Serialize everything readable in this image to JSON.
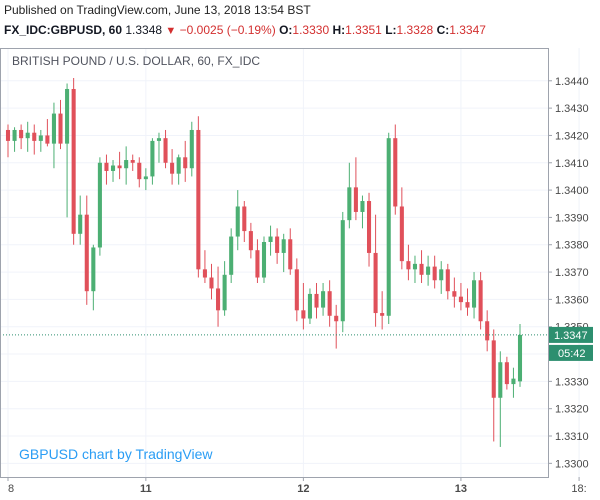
{
  "header": {
    "published": "Published on TradingView.com, June 13, 2018 13:54 BST",
    "symbol": "FX_IDC:GBPUSD, 60",
    "last": "1.3348",
    "change_arrow": "▼",
    "change": "−0.0025 (−0.19%)",
    "open_label": "O:",
    "open_value": "1.3330",
    "high_label": "H:",
    "high_value": "1.3351",
    "low_label": "L:",
    "low_value": "1.3328",
    "close_label": "C:",
    "close_value": "1.3347"
  },
  "colors": {
    "up": "#4caf73",
    "down": "#e0505a",
    "price_line": "#2d8f6f",
    "grid": "#f0f3fa",
    "border": "#9ea3ad"
  },
  "chart_data": {
    "type": "candlestick",
    "title": "BRITISH POUND / U.S. DOLLAR, 60, FX_IDC",
    "watermark": "GBPUSD chart by TradingView",
    "xlabel": "",
    "ylabel": "",
    "ylim": [
      1.3295,
      1.3452
    ],
    "y_ticks": [
      "1.3300",
      "1.3310",
      "1.3320",
      "1.3330",
      "1.3340",
      "1.3350",
      "1.3360",
      "1.3370",
      "1.3380",
      "1.3390",
      "1.3400",
      "1.3410",
      "1.3420",
      "1.3430",
      "1.3440"
    ],
    "x_ticks": [
      {
        "label": "8",
        "index": 0
      },
      {
        "label": "11",
        "index": 21
      },
      {
        "label": "12",
        "index": 45
      },
      {
        "label": "13",
        "index": 69
      },
      {
        "label": "18:",
        "index": 87
      }
    ],
    "current_price": "1.3347",
    "current_time": "05:42",
    "candles": [
      {
        "o": 1.3422,
        "h": 1.3424,
        "l": 1.3412,
        "c": 1.3418
      },
      {
        "o": 1.3418,
        "h": 1.3423,
        "l": 1.3414,
        "c": 1.3422
      },
      {
        "o": 1.3422,
        "h": 1.3424,
        "l": 1.3415,
        "c": 1.3419
      },
      {
        "o": 1.3419,
        "h": 1.3425,
        "l": 1.3414,
        "c": 1.3421
      },
      {
        "o": 1.3421,
        "h": 1.3424,
        "l": 1.3413,
        "c": 1.3418
      },
      {
        "o": 1.3418,
        "h": 1.3422,
        "l": 1.3414,
        "c": 1.342
      },
      {
        "o": 1.342,
        "h": 1.3426,
        "l": 1.3416,
        "c": 1.3417
      },
      {
        "o": 1.3417,
        "h": 1.3432,
        "l": 1.3408,
        "c": 1.3428
      },
      {
        "o": 1.3428,
        "h": 1.3433,
        "l": 1.3415,
        "c": 1.3417
      },
      {
        "o": 1.3417,
        "h": 1.3439,
        "l": 1.339,
        "c": 1.3437
      },
      {
        "o": 1.3437,
        "h": 1.3441,
        "l": 1.338,
        "c": 1.3384
      },
      {
        "o": 1.3384,
        "h": 1.3398,
        "l": 1.338,
        "c": 1.3391
      },
      {
        "o": 1.3391,
        "h": 1.3398,
        "l": 1.3358,
        "c": 1.3363
      },
      {
        "o": 1.3363,
        "h": 1.338,
        "l": 1.3356,
        "c": 1.3379
      },
      {
        "o": 1.3379,
        "h": 1.3412,
        "l": 1.3376,
        "c": 1.341
      },
      {
        "o": 1.341,
        "h": 1.3413,
        "l": 1.3402,
        "c": 1.3407
      },
      {
        "o": 1.3407,
        "h": 1.3411,
        "l": 1.3403,
        "c": 1.3409
      },
      {
        "o": 1.3409,
        "h": 1.3414,
        "l": 1.3404,
        "c": 1.3408
      },
      {
        "o": 1.3408,
        "h": 1.3416,
        "l": 1.3402,
        "c": 1.3411
      },
      {
        "o": 1.3411,
        "h": 1.3413,
        "l": 1.3407,
        "c": 1.341
      },
      {
        "o": 1.341,
        "h": 1.3412,
        "l": 1.3401,
        "c": 1.3404
      },
      {
        "o": 1.3404,
        "h": 1.3408,
        "l": 1.34,
        "c": 1.3405
      },
      {
        "o": 1.3405,
        "h": 1.3419,
        "l": 1.3402,
        "c": 1.3418
      },
      {
        "o": 1.3418,
        "h": 1.3421,
        "l": 1.341,
        "c": 1.3419
      },
      {
        "o": 1.3419,
        "h": 1.3422,
        "l": 1.3408,
        "c": 1.341
      },
      {
        "o": 1.341,
        "h": 1.3415,
        "l": 1.3402,
        "c": 1.3406
      },
      {
        "o": 1.3406,
        "h": 1.3413,
        "l": 1.3402,
        "c": 1.3412
      },
      {
        "o": 1.3412,
        "h": 1.3418,
        "l": 1.3403,
        "c": 1.3408
      },
      {
        "o": 1.3408,
        "h": 1.3425,
        "l": 1.3405,
        "c": 1.3422
      },
      {
        "o": 1.3422,
        "h": 1.3427,
        "l": 1.3368,
        "c": 1.3371
      },
      {
        "o": 1.3371,
        "h": 1.3378,
        "l": 1.3366,
        "c": 1.3368
      },
      {
        "o": 1.3368,
        "h": 1.3373,
        "l": 1.336,
        "c": 1.3364
      },
      {
        "o": 1.3364,
        "h": 1.3372,
        "l": 1.335,
        "c": 1.3356
      },
      {
        "o": 1.3356,
        "h": 1.3374,
        "l": 1.3354,
        "c": 1.3369
      },
      {
        "o": 1.3369,
        "h": 1.3386,
        "l": 1.3366,
        "c": 1.3383
      },
      {
        "o": 1.3383,
        "h": 1.34,
        "l": 1.3378,
        "c": 1.3394
      },
      {
        "o": 1.3394,
        "h": 1.3396,
        "l": 1.3381,
        "c": 1.3385
      },
      {
        "o": 1.3385,
        "h": 1.3388,
        "l": 1.3375,
        "c": 1.3378
      },
      {
        "o": 1.3378,
        "h": 1.3382,
        "l": 1.3366,
        "c": 1.3368
      },
      {
        "o": 1.3368,
        "h": 1.3383,
        "l": 1.3366,
        "c": 1.3381
      },
      {
        "o": 1.3381,
        "h": 1.3387,
        "l": 1.3376,
        "c": 1.3383
      },
      {
        "o": 1.3383,
        "h": 1.3386,
        "l": 1.3373,
        "c": 1.3377
      },
      {
        "o": 1.3377,
        "h": 1.3384,
        "l": 1.337,
        "c": 1.3382
      },
      {
        "o": 1.3382,
        "h": 1.3386,
        "l": 1.3369,
        "c": 1.3371
      },
      {
        "o": 1.3371,
        "h": 1.3375,
        "l": 1.3352,
        "c": 1.3356
      },
      {
        "o": 1.3356,
        "h": 1.3366,
        "l": 1.3349,
        "c": 1.3353
      },
      {
        "o": 1.3353,
        "h": 1.3364,
        "l": 1.3351,
        "c": 1.3362
      },
      {
        "o": 1.3362,
        "h": 1.3366,
        "l": 1.3353,
        "c": 1.3357
      },
      {
        "o": 1.3357,
        "h": 1.3366,
        "l": 1.3354,
        "c": 1.3363
      },
      {
        "o": 1.3363,
        "h": 1.3367,
        "l": 1.335,
        "c": 1.3354
      },
      {
        "o": 1.3354,
        "h": 1.3358,
        "l": 1.3342,
        "c": 1.3352
      },
      {
        "o": 1.3352,
        "h": 1.3392,
        "l": 1.3348,
        "c": 1.3389
      },
      {
        "o": 1.3389,
        "h": 1.341,
        "l": 1.3386,
        "c": 1.3401
      },
      {
        "o": 1.3401,
        "h": 1.3412,
        "l": 1.3389,
        "c": 1.3392
      },
      {
        "o": 1.3392,
        "h": 1.3398,
        "l": 1.3386,
        "c": 1.3396
      },
      {
        "o": 1.3396,
        "h": 1.3399,
        "l": 1.3372,
        "c": 1.3377
      },
      {
        "o": 1.3377,
        "h": 1.3391,
        "l": 1.335,
        "c": 1.3355
      },
      {
        "o": 1.3355,
        "h": 1.3363,
        "l": 1.3349,
        "c": 1.3354
      },
      {
        "o": 1.3354,
        "h": 1.3421,
        "l": 1.3351,
        "c": 1.3419
      },
      {
        "o": 1.3419,
        "h": 1.3424,
        "l": 1.3391,
        "c": 1.3394
      },
      {
        "o": 1.3394,
        "h": 1.3401,
        "l": 1.3371,
        "c": 1.3374
      },
      {
        "o": 1.3374,
        "h": 1.338,
        "l": 1.3367,
        "c": 1.3371
      },
      {
        "o": 1.3371,
        "h": 1.3376,
        "l": 1.3366,
        "c": 1.3373
      },
      {
        "o": 1.3373,
        "h": 1.3378,
        "l": 1.3366,
        "c": 1.3369
      },
      {
        "o": 1.3369,
        "h": 1.3376,
        "l": 1.3365,
        "c": 1.3372
      },
      {
        "o": 1.3372,
        "h": 1.3376,
        "l": 1.3364,
        "c": 1.3367
      },
      {
        "o": 1.3367,
        "h": 1.3374,
        "l": 1.3362,
        "c": 1.3371
      },
      {
        "o": 1.3371,
        "h": 1.3373,
        "l": 1.336,
        "c": 1.3363
      },
      {
        "o": 1.3363,
        "h": 1.3368,
        "l": 1.3357,
        "c": 1.3361
      },
      {
        "o": 1.3361,
        "h": 1.3366,
        "l": 1.3356,
        "c": 1.3359
      },
      {
        "o": 1.3359,
        "h": 1.3364,
        "l": 1.3354,
        "c": 1.3357
      },
      {
        "o": 1.3357,
        "h": 1.337,
        "l": 1.3353,
        "c": 1.3367
      },
      {
        "o": 1.3367,
        "h": 1.337,
        "l": 1.3349,
        "c": 1.3352
      },
      {
        "o": 1.3352,
        "h": 1.3356,
        "l": 1.3341,
        "c": 1.3345
      },
      {
        "o": 1.3345,
        "h": 1.3349,
        "l": 1.3308,
        "c": 1.3324
      },
      {
        "o": 1.3324,
        "h": 1.3341,
        "l": 1.3306,
        "c": 1.3337
      },
      {
        "o": 1.3337,
        "h": 1.3339,
        "l": 1.3327,
        "c": 1.3329
      },
      {
        "o": 1.3329,
        "h": 1.3335,
        "l": 1.3324,
        "c": 1.3331
      },
      {
        "o": 1.333,
        "h": 1.3351,
        "l": 1.3328,
        "c": 1.3347
      }
    ]
  }
}
